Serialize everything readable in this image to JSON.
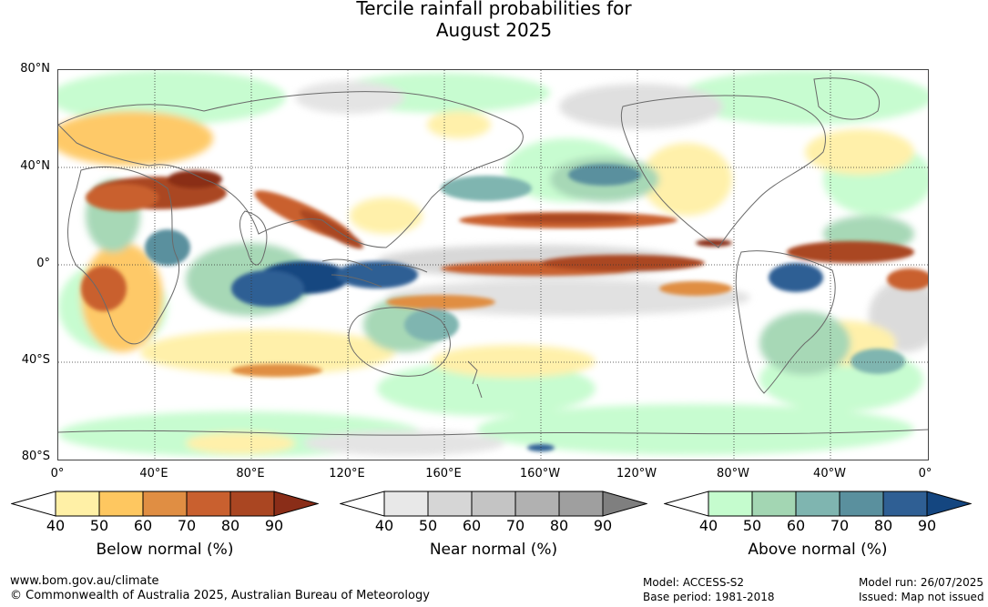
{
  "title": {
    "line1": "Tercile rainfall probabilities for",
    "line2": "August 2025"
  },
  "map": {
    "lat_labels": [
      "80°N",
      "40°N",
      "0°",
      "40°S",
      "80°S"
    ],
    "lon_labels": [
      "0°",
      "40°E",
      "80°E",
      "120°E",
      "160°E",
      "160°W",
      "120°W",
      "80°W",
      "40°W",
      "0°"
    ],
    "colors": {
      "ocean_background": "#ffffff",
      "coastline": "#6a6a6a",
      "gridline": "#333333"
    }
  },
  "legends": [
    {
      "title": "Below normal (%)",
      "ticks": [
        "40",
        "50",
        "60",
        "70",
        "80",
        "90"
      ],
      "colors": [
        "#fff0a6",
        "#fec760",
        "#e08e43",
        "#c9602f",
        "#aa4622",
        "#8a2d18"
      ]
    },
    {
      "title": "Near normal (%)",
      "ticks": [
        "40",
        "50",
        "60",
        "70",
        "80",
        "90"
      ],
      "colors": [
        "#e8e8e8",
        "#d6d6d6",
        "#c4c4c4",
        "#b1b1b1",
        "#9f9f9f",
        "#7f7f7f"
      ]
    },
    {
      "title": "Above normal (%)",
      "ticks": [
        "40",
        "50",
        "60",
        "70",
        "80",
        "90"
      ],
      "colors": [
        "#c5fcce",
        "#a3d6b3",
        "#7fb5b0",
        "#5a909e",
        "#2f5f94",
        "#144680"
      ]
    }
  ],
  "footer": {
    "website": "www.bom.gov.au/climate",
    "copyright": "© Commonwealth of Australia 2025, Australian Bureau of Meteorology",
    "model": "Model: ACCESS-S2",
    "base_period": "Base period: 1981-2018",
    "model_run": "Model run: 26/07/2025",
    "issued": "Issued: Map not issued"
  }
}
